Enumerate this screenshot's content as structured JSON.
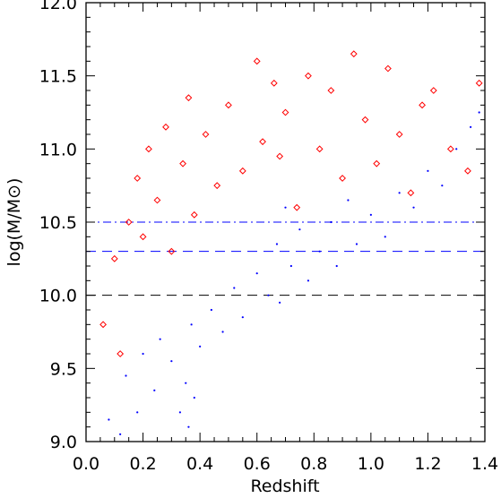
{
  "chart_data": {
    "type": "scatter",
    "xlabel": "Redshift",
    "ylabel": "log(M/M⊙)",
    "xlim": [
      0.0,
      1.4
    ],
    "ylim": [
      9.0,
      12.0
    ],
    "xticks": [
      0.0,
      0.2,
      0.4,
      0.6,
      0.8,
      1.0,
      1.2,
      1.4
    ],
    "yticks": [
      9.0,
      9.5,
      10.0,
      10.5,
      11.0,
      11.5,
      12.0
    ],
    "xtick_labels": [
      "0.0",
      "0.2",
      "0.4",
      "0.6",
      "0.8",
      "1.0",
      "1.2",
      "1.4"
    ],
    "ytick_labels": [
      "9.0",
      "9.5",
      "10.0",
      "10.5",
      "11.0",
      "11.5",
      "12.0"
    ],
    "grid": false,
    "reference_lines": [
      {
        "y": 10.5,
        "style": "dash-dot",
        "color": "#0000ff"
      },
      {
        "y": 10.3,
        "style": "long-dash",
        "color": "#0000ff"
      },
      {
        "y": 10.0,
        "style": "long-dash",
        "color": "#000000"
      }
    ],
    "series": [
      {
        "marker": "dot",
        "color": "#0000ff",
        "points": [
          [
            0.08,
            9.15
          ],
          [
            0.12,
            9.05
          ],
          [
            0.14,
            9.45
          ],
          [
            0.18,
            9.2
          ],
          [
            0.2,
            9.6
          ],
          [
            0.24,
            9.35
          ],
          [
            0.26,
            9.7
          ],
          [
            0.3,
            9.55
          ],
          [
            0.33,
            9.2
          ],
          [
            0.35,
            9.4
          ],
          [
            0.36,
            9.1
          ],
          [
            0.37,
            9.8
          ],
          [
            0.38,
            9.3
          ],
          [
            0.4,
            9.65
          ],
          [
            0.44,
            9.9
          ],
          [
            0.48,
            9.75
          ],
          [
            0.52,
            10.05
          ],
          [
            0.55,
            9.85
          ],
          [
            0.6,
            10.15
          ],
          [
            0.64,
            10.0
          ],
          [
            0.67,
            10.35
          ],
          [
            0.68,
            9.95
          ],
          [
            0.7,
            10.6
          ],
          [
            0.72,
            10.2
          ],
          [
            0.75,
            10.45
          ],
          [
            0.78,
            10.1
          ],
          [
            0.82,
            10.3
          ],
          [
            0.86,
            10.5
          ],
          [
            0.88,
            10.2
          ],
          [
            0.92,
            10.65
          ],
          [
            0.95,
            10.35
          ],
          [
            1.0,
            10.55
          ],
          [
            1.05,
            10.4
          ],
          [
            1.1,
            10.7
          ],
          [
            1.15,
            10.6
          ],
          [
            1.2,
            10.85
          ],
          [
            1.25,
            10.75
          ],
          [
            1.3,
            11.0
          ],
          [
            1.35,
            11.15
          ],
          [
            1.38,
            11.25
          ]
        ]
      },
      {
        "marker": "diamond",
        "color": "#ff0000",
        "points": [
          [
            0.06,
            9.8
          ],
          [
            0.1,
            10.25
          ],
          [
            0.12,
            9.6
          ],
          [
            0.15,
            10.5
          ],
          [
            0.18,
            10.8
          ],
          [
            0.2,
            10.4
          ],
          [
            0.22,
            11.0
          ],
          [
            0.25,
            10.65
          ],
          [
            0.28,
            11.15
          ],
          [
            0.3,
            10.3
          ],
          [
            0.34,
            10.9
          ],
          [
            0.36,
            11.35
          ],
          [
            0.38,
            10.55
          ],
          [
            0.42,
            11.1
          ],
          [
            0.46,
            10.75
          ],
          [
            0.5,
            11.3
          ],
          [
            0.55,
            10.85
          ],
          [
            0.6,
            11.6
          ],
          [
            0.62,
            11.05
          ],
          [
            0.66,
            11.45
          ],
          [
            0.68,
            10.95
          ],
          [
            0.7,
            11.25
          ],
          [
            0.74,
            10.6
          ],
          [
            0.78,
            11.5
          ],
          [
            0.82,
            11.0
          ],
          [
            0.86,
            11.4
          ],
          [
            0.9,
            10.8
          ],
          [
            0.94,
            11.65
          ],
          [
            0.98,
            11.2
          ],
          [
            1.02,
            10.9
          ],
          [
            1.06,
            11.55
          ],
          [
            1.1,
            11.1
          ],
          [
            1.14,
            10.7
          ],
          [
            1.18,
            11.3
          ],
          [
            1.22,
            11.4
          ],
          [
            1.28,
            11.0
          ],
          [
            1.34,
            10.85
          ],
          [
            1.38,
            11.45
          ]
        ]
      }
    ]
  }
}
